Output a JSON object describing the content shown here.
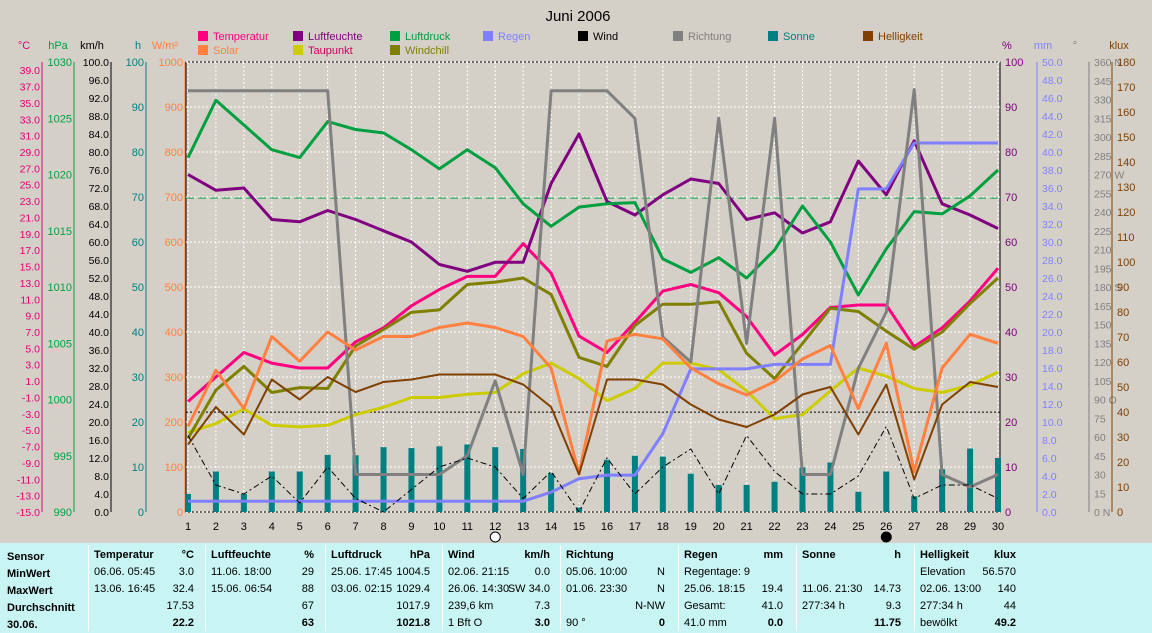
{
  "chart_data": {
    "type": "line",
    "title": "Juni 2006",
    "x": [
      1,
      2,
      3,
      4,
      5,
      6,
      7,
      8,
      9,
      10,
      11,
      12,
      13,
      14,
      15,
      16,
      17,
      18,
      19,
      20,
      21,
      22,
      23,
      24,
      25,
      26,
      27,
      28,
      29,
      30
    ],
    "left_axes": [
      {
        "unit": "°C",
        "color": "#e0007a",
        "ticks": [
          "39.0",
          "37.0",
          "35.0",
          "33.0",
          "31.0",
          "29.0",
          "27.0",
          "25.0",
          "23.0",
          "21.0",
          "19.0",
          "17.0",
          "15.0",
          "13.0",
          "11.0",
          "9.0",
          "7.0",
          "5.0",
          "3.0",
          "1.0",
          "-1.0",
          "-3.0",
          "-5.0",
          "-7.0",
          "-9.0",
          "-11.0",
          "-13.0",
          "-15.0"
        ]
      },
      {
        "unit": "hPa",
        "color": "#00a040",
        "ticks": [
          "1030",
          "1025",
          "1020",
          "1015",
          "1010",
          "1005",
          "1000",
          "995",
          "990"
        ]
      },
      {
        "unit": "km/h",
        "color": "#000000",
        "ticks": [
          "100.0",
          "96.0",
          "92.0",
          "88.0",
          "84.0",
          "80.0",
          "76.0",
          "72.0",
          "68.0",
          "64.0",
          "60.0",
          "56.0",
          "52.0",
          "48.0",
          "44.0",
          "40.0",
          "36.0",
          "32.0",
          "28.0",
          "24.0",
          "20.0",
          "16.0",
          "12.0",
          "8.0",
          "4.0",
          "0.0"
        ]
      },
      {
        "unit": "h",
        "color": "#008080",
        "ticks": [
          "100",
          "90",
          "80",
          "70",
          "60",
          "50",
          "40",
          "30",
          "20",
          "10",
          "0"
        ]
      },
      {
        "unit": "W/m²",
        "color": "#ff8040",
        "ticks": [
          "1000",
          "900",
          "800",
          "700",
          "600",
          "500",
          "400",
          "300",
          "200",
          "100",
          "0"
        ]
      }
    ],
    "right_axes": [
      {
        "unit": "%",
        "color": "#800080",
        "ticks": [
          "100",
          "90",
          "80",
          "70",
          "60",
          "50",
          "40",
          "30",
          "20",
          "10",
          "0"
        ]
      },
      {
        "unit": "mm",
        "color": "#8080ff",
        "ticks": [
          "50.0",
          "48.0",
          "46.0",
          "44.0",
          "42.0",
          "40.0",
          "38.0",
          "36.0",
          "34.0",
          "32.0",
          "30.0",
          "28.0",
          "26.0",
          "24.0",
          "22.0",
          "20.0",
          "18.0",
          "16.0",
          "14.0",
          "12.0",
          "10.0",
          "8.0",
          "6.0",
          "4.0",
          "2.0",
          "0.0"
        ]
      },
      {
        "unit": "°",
        "color": "#808080",
        "ticks": [
          "360 N",
          "345",
          "330",
          "315",
          "300",
          "285",
          "270 W",
          "255",
          "240",
          "225",
          "210",
          "195",
          "180 S",
          "165",
          "150",
          "135",
          "120",
          "105",
          "90 O",
          "75",
          "60",
          "45",
          "30",
          "15",
          "0 N"
        ]
      },
      {
        "unit": "klux",
        "color": "#804000",
        "ticks": [
          "180",
          "170",
          "160",
          "150",
          "140",
          "130",
          "120",
          "110",
          "100",
          "90",
          "80",
          "70",
          "60",
          "50",
          "40",
          "30",
          "20",
          "10",
          "0"
        ]
      }
    ],
    "legend": [
      {
        "name": "Temperatur",
        "color": "#ff0080"
      },
      {
        "name": "Solar",
        "color": "#ff8040"
      },
      {
        "name": "Luftfeuchte",
        "color": "#800080"
      },
      {
        "name": "Taupunkt",
        "color": "#cccc00"
      },
      {
        "name": "Luftdruck",
        "color": "#00a040"
      },
      {
        "name": "Windchill",
        "color": "#808000"
      },
      {
        "name": "Regen",
        "color": "#8080ff"
      },
      {
        "name": "Wind",
        "color": "#000000"
      },
      {
        "name": "Richtung",
        "color": "#808080"
      },
      {
        "name": "Sonne",
        "color": "#008080"
      },
      {
        "name": "Helligkeit",
        "color": "#804000"
      }
    ],
    "series": [
      {
        "name": "Temperatur",
        "axis": "°C",
        "color": "#ff0080",
        "width": 3,
        "values": [
          -1.5,
          1.5,
          4.5,
          3.2,
          2.6,
          2.6,
          5.8,
          7.5,
          10.2,
          12.2,
          13.8,
          13.8,
          17.8,
          14.2,
          6.5,
          4.5,
          8.2,
          12.0,
          12.8,
          11.8,
          8.9,
          4.2,
          6.7,
          10.0,
          10.3,
          10.3,
          5.2,
          7.5,
          10.8,
          14.8
        ]
      },
      {
        "name": "Luftfeuchte",
        "axis": "%",
        "color": "#800080",
        "width": 3,
        "values": [
          75,
          71.5,
          72,
          65,
          64.5,
          67,
          65,
          62.5,
          60,
          55,
          53.5,
          55.5,
          55.5,
          73,
          84,
          69,
          66,
          70.5,
          74,
          73,
          65,
          66.5,
          62,
          64.5,
          78,
          70.5,
          82.5,
          68.5,
          66,
          63
        ]
      },
      {
        "name": "Luftdruck",
        "axis": "hPa",
        "color": "#00a040",
        "width": 3,
        "values": [
          1021.5,
          1026.6,
          1024.4,
          1022.2,
          1021.5,
          1024.7,
          1024.0,
          1023.7,
          1022.2,
          1020.5,
          1022.2,
          1020.6,
          1017.4,
          1015.4,
          1017.1,
          1017.4,
          1017.5,
          1012.5,
          1011.3,
          1012.6,
          1010.8,
          1013.3,
          1017.2,
          1014.0,
          1009.3,
          1013.4,
          1016.7,
          1016.5,
          1018.1,
          1020.4
        ]
      },
      {
        "name": "Taupunkt",
        "axis": "°C",
        "color": "#cccc00",
        "width": 3,
        "values": [
          -5.3,
          -4.2,
          -2.4,
          -4.4,
          -4.6,
          -4.4,
          -3.1,
          -2.2,
          -1.0,
          -1.0,
          -0.6,
          -0.4,
          1.9,
          3.2,
          1.3,
          -1.4,
          0.1,
          3.2,
          3.2,
          2.4,
          -0.2,
          -3.6,
          -3.1,
          -0.2,
          2.6,
          1.6,
          0.1,
          -0.4,
          0.5,
          2.1
        ]
      },
      {
        "name": "Windchill",
        "axis": "°C",
        "color": "#808000",
        "width": 3,
        "values": [
          -6.0,
          -0.1,
          2.8,
          -0.4,
          0.2,
          0.1,
          5.3,
          7.3,
          9.4,
          9.7,
          12.8,
          13.1,
          13.6,
          11.6,
          3.9,
          2.8,
          7.8,
          10.4,
          10.4,
          10.7,
          4.4,
          1.3,
          5.6,
          9.9,
          9.5,
          7.1,
          4.9,
          7.0,
          10.5,
          13.6
        ]
      },
      {
        "name": "Regen",
        "axis": "mm",
        "color": "#8080ff",
        "width": 3,
        "values": [
          1.2,
          1.2,
          1.2,
          1.2,
          1.2,
          1.2,
          1.2,
          1.2,
          1.2,
          1.2,
          1.2,
          1.2,
          1.2,
          2.2,
          3.7,
          4.1,
          4.1,
          8.7,
          15.9,
          15.9,
          15.9,
          16.4,
          16.4,
          16.4,
          35.9,
          35.9,
          41.0,
          41.0,
          41.0,
          41.0
        ]
      },
      {
        "name": "Richtung",
        "axis": "°",
        "color": "#808080",
        "width": 3,
        "values": [
          337,
          337,
          337,
          337,
          337,
          337,
          30,
          30,
          30,
          30,
          45,
          105,
          30,
          337,
          337,
          337,
          315,
          140,
          120,
          315,
          135,
          315,
          30,
          30,
          115,
          160,
          338,
          30,
          20,
          30
        ]
      },
      {
        "name": "Solar",
        "axis": "W/m²",
        "color": "#ff8040",
        "width": 3,
        "values": [
          190,
          315,
          230,
          390,
          335,
          400,
          360,
          390,
          390,
          410,
          420,
          410,
          390,
          320,
          85,
          380,
          395,
          385,
          320,
          285,
          260,
          290,
          340,
          370,
          230,
          375,
          90,
          320,
          395,
          375
        ]
      },
      {
        "name": "Helligkeit",
        "axis": "klux",
        "color": "#804000",
        "width": 2,
        "values": [
          27,
          42,
          31,
          53,
          45,
          54,
          48,
          52,
          53,
          55,
          55,
          55,
          51,
          42,
          15,
          53,
          53,
          51,
          43,
          37,
          34,
          39,
          47,
          50,
          31,
          51,
          13,
          43,
          52,
          50
        ]
      },
      {
        "name": "Wind",
        "axis": "km/h",
        "color": "#000000",
        "width": 1,
        "dash": "6,3,2,3",
        "values": [
          17,
          6,
          4,
          8,
          2,
          10,
          3,
          0,
          5,
          10,
          12,
          10,
          3,
          9,
          0,
          12,
          4,
          10,
          14,
          4,
          17,
          9,
          4,
          4,
          8,
          19,
          3,
          6,
          6,
          3
        ]
      },
      {
        "name": "Sonne",
        "axis": "h",
        "color": "#008080",
        "type": "bar",
        "values": [
          4,
          9,
          4,
          9,
          9,
          12.7,
          12.6,
          14.4,
          14.2,
          14.6,
          15.0,
          14.4,
          14.0,
          8.6,
          1.0,
          11.6,
          12.5,
          12.3,
          8.5,
          6.0,
          6.0,
          6.7,
          9.9,
          11.0,
          4.5,
          9.0,
          3.5,
          9.5,
          14.1,
          12.0
        ]
      }
    ],
    "reference_lines": [
      {
        "axis": "hPa",
        "value": 1017.9,
        "color": "#00a040",
        "dash": "8,4"
      },
      {
        "axis": "°C",
        "value": -2.8,
        "color": "#000000",
        "dash": "2,2"
      }
    ],
    "moon_markers": [
      {
        "day": 12,
        "phase": "new"
      },
      {
        "day": 26,
        "phase": "full"
      }
    ],
    "grid": true
  },
  "stats": {
    "row_labels": [
      "Sensor",
      "MinWert",
      "MaxWert",
      "Durchschnitt",
      "30.06."
    ],
    "temperatur": {
      "title": "Temperatur",
      "unit": "°C",
      "rows": [
        [
          "06.06.  05:45",
          "3.0"
        ],
        [
          "13.06.  16:45",
          "32.4"
        ],
        [
          "",
          "17.53"
        ],
        [
          "",
          "22.2"
        ]
      ]
    },
    "luftfeuchte": {
      "title": "Luftfeuchte",
      "unit": "%",
      "rows": [
        [
          "11.06.  18:00",
          "29"
        ],
        [
          "15.06.  06:54",
          "88"
        ],
        [
          "",
          "67"
        ],
        [
          "",
          "63"
        ]
      ]
    },
    "luftdruck": {
      "title": "Luftdruck",
      "unit": "hPa",
      "rows": [
        [
          "25.06.  17:45",
          "1004.5"
        ],
        [
          "03.06.  02:15",
          "1029.4"
        ],
        [
          "",
          "1017.9"
        ],
        [
          "",
          "1021.8"
        ]
      ]
    },
    "wind": {
      "title": "Wind",
      "unit": "km/h",
      "rows": [
        [
          "02.06.  21:15",
          "0.0"
        ],
        [
          "26.06.  14:30",
          "SW 34.0"
        ],
        [
          "239,6 km",
          "7.3"
        ],
        [
          "1 Bft O",
          "3.0"
        ]
      ]
    },
    "richtung": {
      "title": "Richtung",
      "unit": "",
      "rows": [
        [
          "05.06.  10:00",
          "N"
        ],
        [
          "01.06.  23:30",
          "N"
        ],
        [
          "",
          "N-NW"
        ],
        [
          "90 °",
          "0"
        ]
      ]
    },
    "regen": {
      "title": "Regen",
      "unit": "mm",
      "rows": [
        [
          "Regentage: 9",
          ""
        ],
        [
          "25.06.  18:15",
          "19.4"
        ],
        [
          "Gesamt:",
          "41.0"
        ],
        [
          "41.0 mm",
          "0.0"
        ]
      ]
    },
    "sonne": {
      "title": "Sonne",
      "unit": "h",
      "rows": [
        [
          "",
          ""
        ],
        [
          "11.06.  21:30",
          "14.73"
        ],
        [
          "277:34 h",
          "9.3"
        ],
        [
          "",
          "11.75"
        ]
      ]
    },
    "helligkeit": {
      "title": "Helligkeit",
      "unit": "klux",
      "rows": [
        [
          "Elevation",
          "56.570"
        ],
        [
          "02.06.  13:00",
          "140"
        ],
        [
          "277:34 h",
          "44"
        ],
        [
          "bewölkt",
          "49.2"
        ]
      ]
    }
  }
}
